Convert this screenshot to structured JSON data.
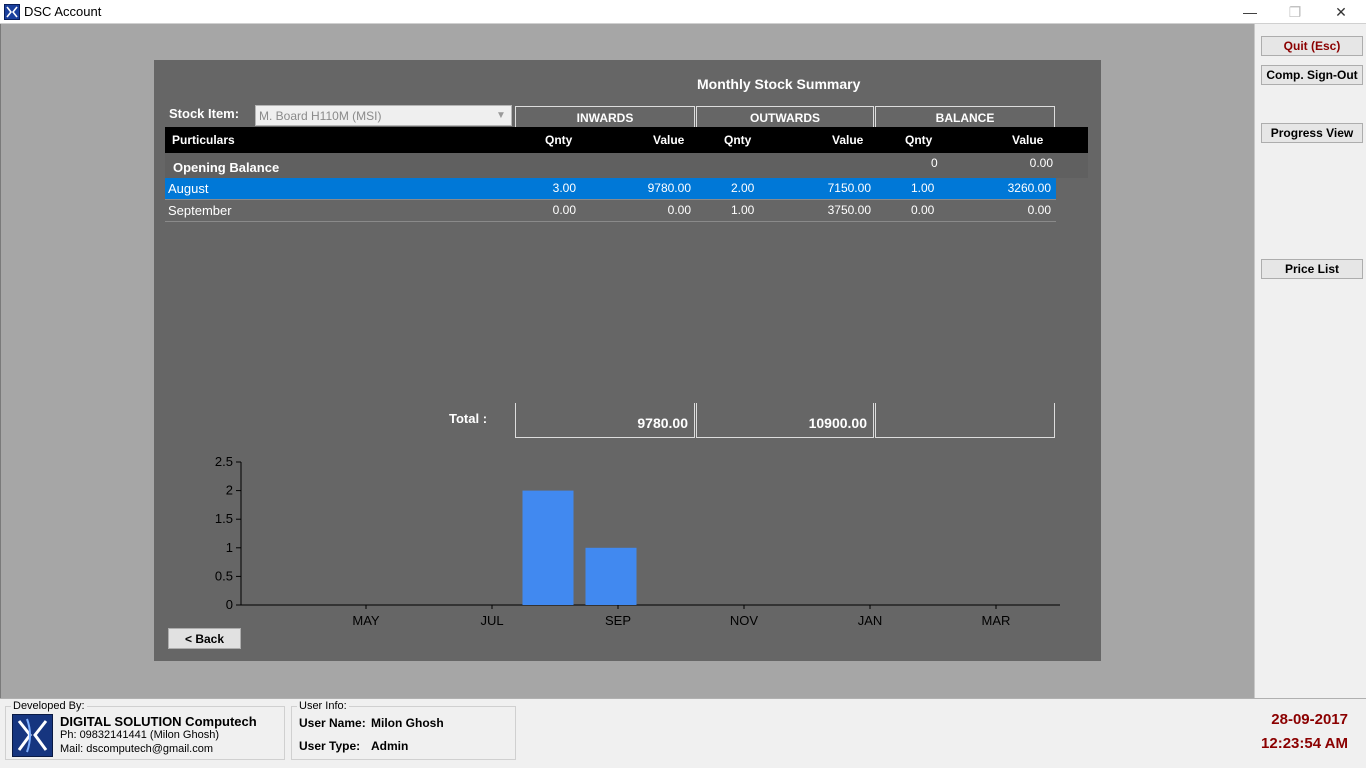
{
  "window": {
    "title": "DSC Account",
    "icon": "app-logo-icon"
  },
  "window_controls": {
    "minimize": "—",
    "restore": "❐",
    "close": "✕"
  },
  "sidebar": {
    "quit": "Quit (Esc)",
    "sign_out": "Comp. Sign-Out",
    "progress_view": "Progress View",
    "price_list": "Price List"
  },
  "summary": {
    "title": "Monthly Stock Summary",
    "stock_item_label": "Stock Item:",
    "stock_item_value": "M. Board H110M (MSI)",
    "group_headers": [
      "INWARDS",
      "OUTWARDS",
      "BALANCE"
    ],
    "columns": {
      "particulars": "Purticulars",
      "in_qnty": "Qnty",
      "in_value": "Value",
      "out_qnty": "Qnty",
      "out_value": "Value",
      "bal_qnty": "Qnty",
      "bal_value": "Value"
    },
    "opening_balance": {
      "label": "Opening Balance",
      "qnty": "0",
      "value": "0.00"
    },
    "rows": [
      {
        "month": "August",
        "in_qnty": "3.00",
        "in_value": "9780.00",
        "out_qnty": "2.00",
        "out_value": "7150.00",
        "bal_qnty": "1.00",
        "bal_value": "3260.00",
        "selected": true
      },
      {
        "month": "September",
        "in_qnty": "0.00",
        "in_value": "0.00",
        "out_qnty": "1.00",
        "out_value": "3750.00",
        "bal_qnty": "0.00",
        "bal_value": "0.00",
        "selected": false
      }
    ],
    "total_label": "Total :",
    "total_inwards": "9780.00",
    "total_outwards": "10900.00",
    "total_balance": "",
    "back_button": "< Back"
  },
  "chart_data": {
    "type": "bar",
    "x_tick_labels": [
      "MAY",
      "JUL",
      "SEP",
      "NOV",
      "JAN",
      "MAR"
    ],
    "y_tick_labels": [
      "0",
      "0.5",
      "1",
      "1.5",
      "2",
      "2.5"
    ],
    "ylim": [
      0,
      2.5
    ],
    "bars": [
      {
        "month": "AUG",
        "value": 2
      },
      {
        "month": "SEP",
        "value": 1
      }
    ],
    "bar_color": "#4189f0",
    "grid": false
  },
  "status": {
    "developed_by_label": "Developed By:",
    "company": "DIGITAL SOLUTION Computech",
    "phone": "Ph: 09832141441 (Milon Ghosh)",
    "mail": "Mail: dscomputech@gmail.com",
    "user_info_label": "User Info:",
    "user_name_label": "User Name:",
    "user_name": "Milon Ghosh",
    "user_type_label": "User Type:",
    "user_type": "Admin",
    "date": "28-09-2017",
    "time": "12:23:54 AM"
  }
}
